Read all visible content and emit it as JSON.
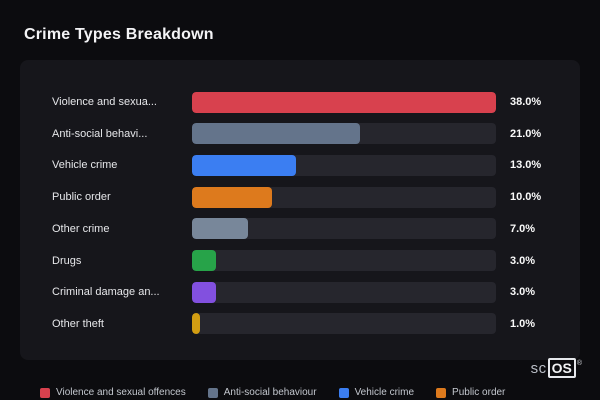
{
  "title": "Crime Types Breakdown",
  "chart_data": {
    "type": "bar",
    "orientation": "horizontal",
    "title": "Crime Types Breakdown",
    "xlabel": "",
    "ylabel": "",
    "xlim": [
      0,
      38
    ],
    "grid": false,
    "legend_position": "bottom",
    "categories": [
      "Violence and sexua...",
      "Anti-social behavi...",
      "Vehicle crime",
      "Public order",
      "Other crime",
      "Drugs",
      "Criminal damage an...",
      "Other theft"
    ],
    "values": [
      38.0,
      21.0,
      13.0,
      10.0,
      7.0,
      3.0,
      3.0,
      1.0
    ],
    "value_labels": [
      "38.0%",
      "21.0%",
      "13.0%",
      "10.0%",
      "7.0%",
      "3.0%",
      "3.0%",
      "1.0%"
    ],
    "bar_colors": [
      "#d8414e",
      "#64748b",
      "#3b7ef2",
      "#dd7a1d",
      "#78879a",
      "#27a349",
      "#8250df",
      "#d29d12"
    ],
    "track_color": "#26262d",
    "legend": [
      {
        "label": "Violence and sexual offences",
        "color": "#d8414e"
      },
      {
        "label": "Anti-social behaviour",
        "color": "#64748b"
      },
      {
        "label": "Vehicle crime",
        "color": "#3b7ef2"
      },
      {
        "label": "Public order",
        "color": "#dd7a1d"
      }
    ]
  },
  "branding": {
    "logo_text_a": "sc",
    "logo_text_b": "OS",
    "registered": "®"
  }
}
